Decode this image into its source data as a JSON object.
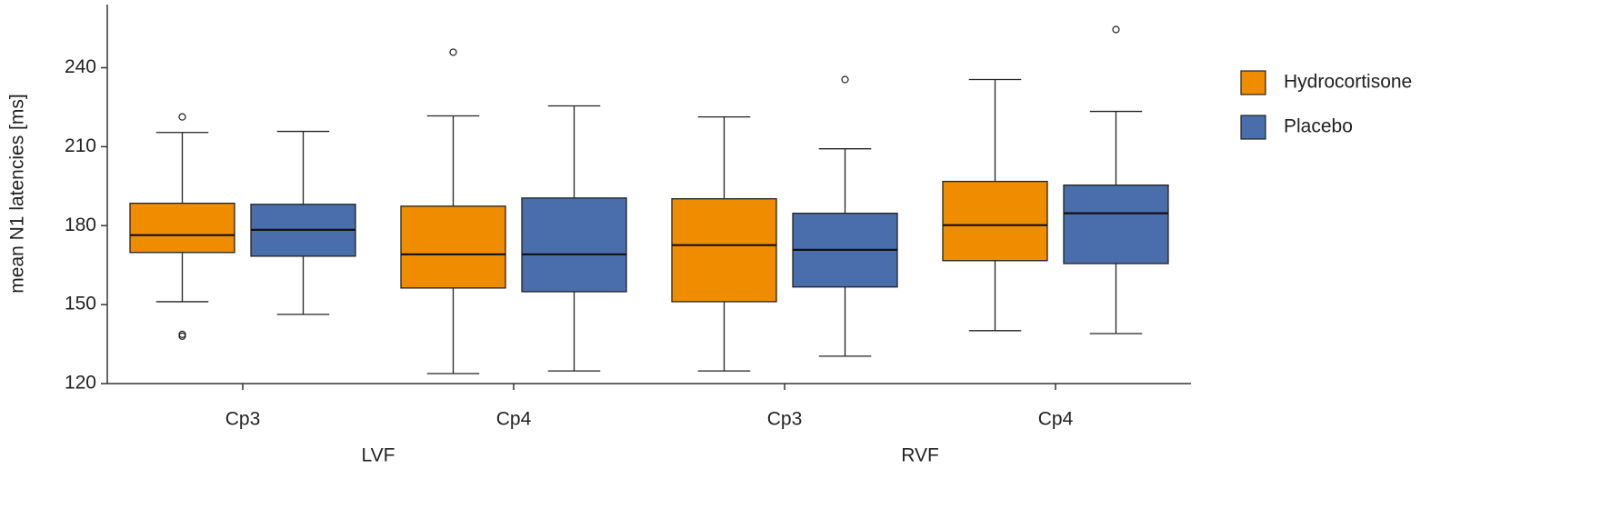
{
  "chart_data": {
    "type": "box",
    "y_label": "mean N1 latencies [ms]",
    "categories": [
      "Cp3",
      "Cp4",
      "Cp3",
      "Cp4"
    ],
    "groups": [
      "LVF",
      "RVF"
    ],
    "ylim": [
      120,
      264
    ],
    "yticks": [
      120,
      150,
      180,
      210,
      240
    ],
    "legend": "right",
    "series": [
      {
        "name": "Hydrocortisone",
        "color": "#f08c00",
        "boxes": [
          {
            "whislo": 151.1,
            "q1": 169.8,
            "med": 176.4,
            "q3": 188.5,
            "whishi": 215.4,
            "fliers": [
              221.3,
              138.7,
              138
            ]
          },
          {
            "whislo": 123.8,
            "q1": 156.3,
            "med": 169.1,
            "q3": 187.4,
            "whishi": 221.7,
            "fliers": [
              245.9
            ]
          },
          {
            "whislo": 124.8,
            "q1": 151.1,
            "med": 172.6,
            "q3": 190.2,
            "whishi": 221.3,
            "fliers": []
          },
          {
            "whislo": 140.1,
            "q1": 166.7,
            "med": 180.2,
            "q3": 196.8,
            "whishi": 235.5,
            "fliers": []
          }
        ]
      },
      {
        "name": "Placebo",
        "color": "#4a6eab",
        "boxes": [
          {
            "whislo": 146.3,
            "q1": 168.4,
            "med": 178.4,
            "q3": 188.1,
            "whishi": 215.8,
            "fliers": []
          },
          {
            "whislo": 124.8,
            "q1": 154.9,
            "med": 169.1,
            "q3": 190.5,
            "whishi": 225.5,
            "fliers": []
          },
          {
            "whislo": 130.4,
            "q1": 156.7,
            "med": 170.8,
            "q3": 184.7,
            "whishi": 209.2,
            "fliers": [
              235.5
            ]
          },
          {
            "whislo": 139,
            "q1": 165.6,
            "med": 184.7,
            "q3": 195.4,
            "whishi": 223.4,
            "fliers": [
              254.5
            ]
          }
        ]
      }
    ]
  }
}
